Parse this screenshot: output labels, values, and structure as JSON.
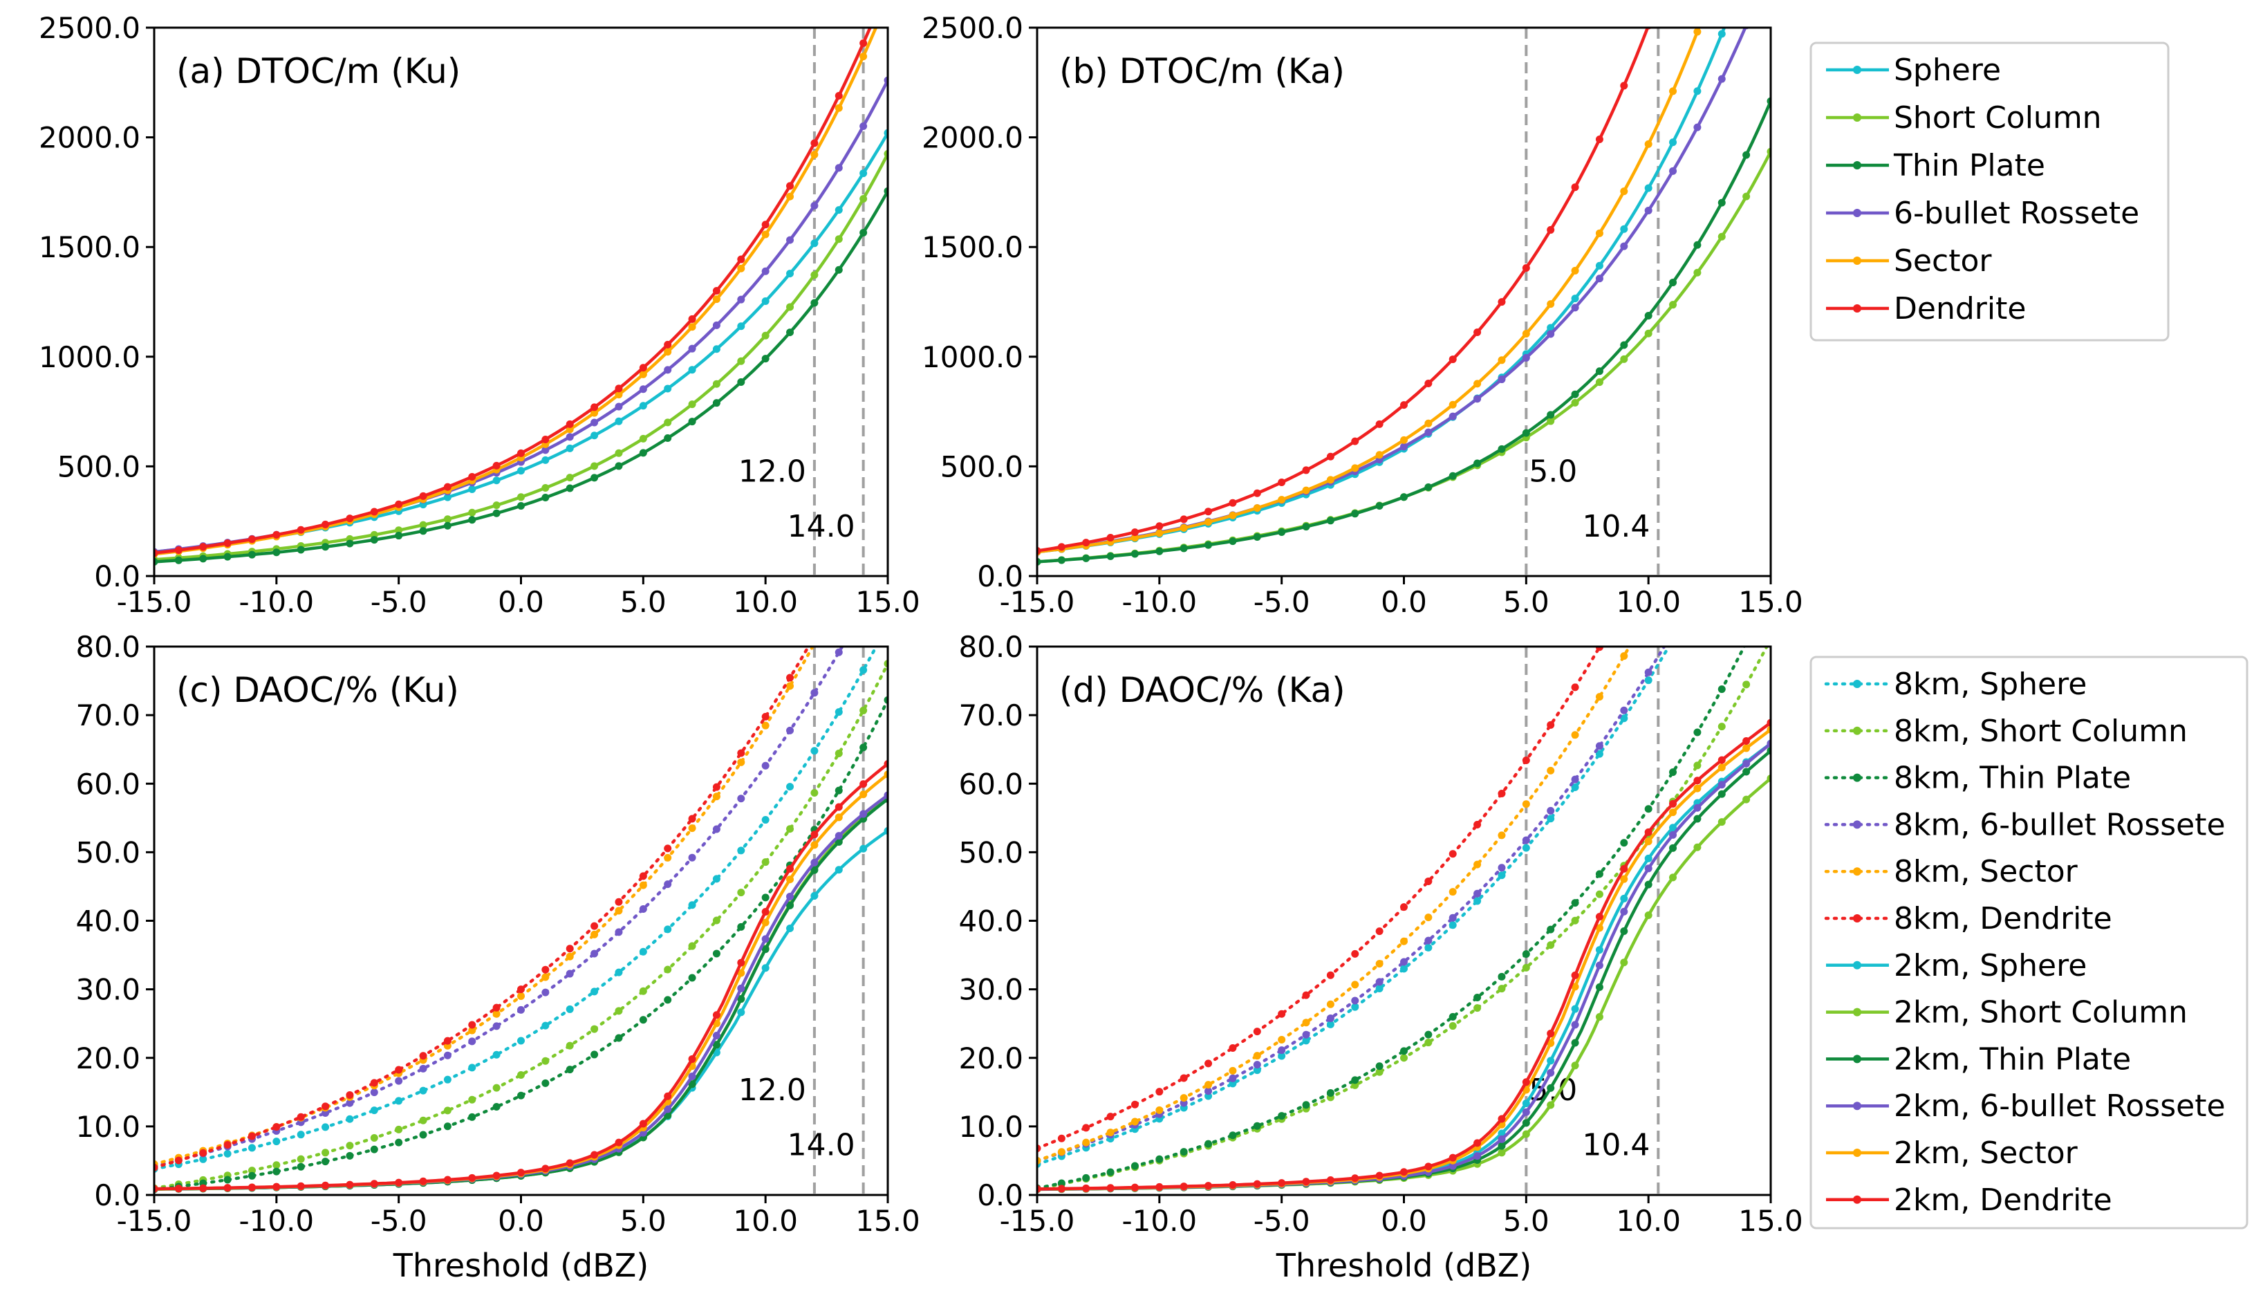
{
  "figure": {
    "x_label": "Threshold (dBZ)"
  },
  "chart_data": [
    {
      "type": "line",
      "title": "(a) DTOC/m (Ku)",
      "xlim": [
        -15,
        15
      ],
      "ylim": [
        0,
        2500
      ],
      "xticks": [
        "-15.0",
        "-10.0",
        "-5.0",
        "0.0",
        "5.0",
        "10.0",
        "15.0"
      ],
      "yticks": [
        "0.0",
        "500.0",
        "1000.0",
        "1500.0",
        "2000.0",
        "2500.0"
      ],
      "xtick_values": [
        -15,
        -10,
        -5,
        0,
        5,
        10,
        15
      ],
      "ytick_values": [
        0,
        500,
        1000,
        1500,
        2000,
        2500
      ],
      "vlines": [
        {
          "x": 12.0,
          "label": "12.0",
          "label_y": 430
        },
        {
          "x": 14.0,
          "label": "14.0",
          "label_y": 180
        }
      ],
      "curve_type": "exp",
      "series": [
        {
          "name": "Sphere",
          "color": "#17becf",
          "style": "solid",
          "anchors": [
            110,
            480,
            1650
          ]
        },
        {
          "name": "Short Column",
          "color": "#7ec82a",
          "style": "solid",
          "anchors": [
            75,
            360,
            1640
          ]
        },
        {
          "name": "Thin Plate",
          "color": "#0f8a3c",
          "style": "solid",
          "anchors": [
            65,
            320,
            1500
          ]
        },
        {
          "name": "6-bullet Rossete",
          "color": "#7158c8",
          "style": "solid",
          "anchors": [
            110,
            520,
            1850
          ]
        },
        {
          "name": "Sector",
          "color": "#ffaa00",
          "style": "solid",
          "anchors": [
            100,
            540,
            2190
          ]
        },
        {
          "name": "Dendrite",
          "color": "#f02020",
          "style": "solid",
          "anchors": [
            105,
            560,
            2240
          ]
        }
      ]
    },
    {
      "type": "line",
      "title": "(b) DTOC/m (Ka)",
      "xlim": [
        -15,
        15
      ],
      "ylim": [
        0,
        2500
      ],
      "xticks": [
        "-15.0",
        "-10.0",
        "-5.0",
        "0.0",
        "5.0",
        "10.0",
        "15.0"
      ],
      "yticks": [
        "0.0",
        "500.0",
        "1000.0",
        "1500.0",
        "2000.0",
        "2500.0"
      ],
      "xtick_values": [
        -15,
        -10,
        -5,
        0,
        5,
        10,
        15
      ],
      "ytick_values": [
        0,
        500,
        1000,
        1500,
        2000,
        2500
      ],
      "vlines": [
        {
          "x": 5.0,
          "label": "5.0",
          "label_y": 430
        },
        {
          "x": 10.4,
          "label": "10.4",
          "label_y": 180
        }
      ],
      "curve_type": "exp",
      "series": [
        {
          "name": "Sphere",
          "color": "#17becf",
          "style": "solid",
          "anchors": [
            110,
            580,
            2620
          ]
        },
        {
          "name": "Short Column",
          "color": "#7ec82a",
          "style": "solid",
          "anchors": [
            65,
            360,
            1640
          ]
        },
        {
          "name": "Thin Plate",
          "color": "#0f8a3c",
          "style": "solid",
          "anchors": [
            65,
            360,
            1870
          ]
        },
        {
          "name": "6-bullet Rossete",
          "color": "#7158c8",
          "style": "solid",
          "anchors": [
            110,
            590,
            2300
          ]
        },
        {
          "name": "Sector",
          "color": "#ffaa00",
          "style": "solid",
          "anchors": [
            110,
            620,
            3000
          ]
        },
        {
          "name": "Dendrite",
          "color": "#f02020",
          "style": "solid",
          "anchors": [
            115,
            780,
            3800
          ]
        }
      ]
    },
    {
      "type": "line",
      "title": "(c) DAOC/% (Ku)",
      "xlim": [
        -15,
        15
      ],
      "ylim": [
        0,
        80
      ],
      "xticks": [
        "-15.0",
        "-10.0",
        "-5.0",
        "0.0",
        "5.0",
        "10.0",
        "15.0"
      ],
      "yticks": [
        "0.0",
        "10.0",
        "20.0",
        "30.0",
        "40.0",
        "50.0",
        "60.0",
        "70.0",
        "80.0"
      ],
      "xtick_values": [
        -15,
        -10,
        -5,
        0,
        5,
        10,
        15
      ],
      "ytick_values": [
        0,
        10,
        20,
        30,
        40,
        50,
        60,
        70,
        80
      ],
      "vlines": [
        {
          "x": 12.0,
          "label": "12.0",
          "label_y": 13.8
        },
        {
          "x": 14.0,
          "label": "14.0",
          "label_y": 5.8
        }
      ],
      "series": [
        {
          "name": "8km, Sphere",
          "color": "#17becf",
          "style": "dotted",
          "curve": "exp",
          "anchors": [
            3.8,
            22.5,
            64.5
          ]
        },
        {
          "name": "8km, Short Column",
          "color": "#7ec82a",
          "style": "dotted",
          "curve": "exp",
          "anchors": [
            1.0,
            17.5,
            61.0
          ]
        },
        {
          "name": "8km, Thin Plate",
          "color": "#0f8a3c",
          "style": "dotted",
          "curve": "exp",
          "anchors": [
            0.8,
            14.5,
            58.5
          ]
        },
        {
          "name": "8km, 6-bullet Rossete",
          "color": "#7158c8",
          "style": "dotted",
          "curve": "exp",
          "anchors": [
            4.2,
            27.0,
            69.5
          ]
        },
        {
          "name": "8km, Sector",
          "color": "#ffaa00",
          "style": "dotted",
          "curve": "exp",
          "anchors": [
            4.5,
            29.0,
            77.5
          ]
        },
        {
          "name": "8km, Dendrite",
          "color": "#f02020",
          "style": "dotted",
          "curve": "exp",
          "anchors": [
            4.0,
            30.0,
            76.5
          ]
        },
        {
          "name": "2km, Sphere",
          "color": "#17becf",
          "style": "solid",
          "curve": "sig",
          "params": {
            "c": 2.0,
            "s": 8.7,
            "k": 1.7,
            "i": 42,
            "t": 12.0
          }
        },
        {
          "name": "2km, Short Column",
          "color": "#7ec82a",
          "style": "solid",
          "curve": "sig",
          "params": {
            "c": 2.0,
            "s": 8.6,
            "k": 1.6,
            "i": 44,
            "t": 15.0
          }
        },
        {
          "name": "2km, Thin Plate",
          "color": "#0f8a3c",
          "style": "solid",
          "curve": "sig",
          "params": {
            "c": 2.0,
            "s": 8.6,
            "k": 1.6,
            "i": 44,
            "t": 14.5
          }
        },
        {
          "name": "2km, 6-bullet Rossete",
          "color": "#7158c8",
          "style": "solid",
          "curve": "sig",
          "params": {
            "c": 2.2,
            "s": 8.5,
            "k": 1.6,
            "i": 45,
            "t": 14.0
          }
        },
        {
          "name": "2km, Sector",
          "color": "#ffaa00",
          "style": "solid",
          "curve": "sig",
          "params": {
            "c": 2.3,
            "s": 8.3,
            "k": 1.6,
            "i": 46,
            "t": 16.0
          }
        },
        {
          "name": "2km, Dendrite",
          "color": "#f02020",
          "style": "solid",
          "curve": "sig",
          "params": {
            "c": 2.4,
            "s": 8.2,
            "k": 1.6,
            "i": 47,
            "t": 16.5
          }
        }
      ]
    },
    {
      "type": "line",
      "title": "(d) DAOC/% (Ka)",
      "xlim": [
        -15,
        15
      ],
      "ylim": [
        0,
        80
      ],
      "xticks": [
        "-15.0",
        "-10.0",
        "-5.0",
        "0.0",
        "5.0",
        "10.0",
        "15.0"
      ],
      "yticks": [
        "0.0",
        "10.0",
        "20.0",
        "30.0",
        "40.0",
        "50.0",
        "60.0",
        "70.0",
        "80.0"
      ],
      "xtick_values": [
        -15,
        -10,
        -5,
        0,
        5,
        10,
        15
      ],
      "ytick_values": [
        0,
        10,
        20,
        30,
        40,
        50,
        60,
        70,
        80
      ],
      "vlines": [
        {
          "x": 5.0,
          "label": "5.0",
          "label_y": 13.8
        },
        {
          "x": 10.4,
          "label": "10.4",
          "label_y": 5.8
        }
      ],
      "series": [
        {
          "name": "8km, Sphere",
          "color": "#17becf",
          "style": "dotted",
          "curve": "exp",
          "anchors": [
            4.5,
            33.0,
            80.5
          ]
        },
        {
          "name": "8km, Short Column",
          "color": "#7ec82a",
          "style": "dotted",
          "curve": "exp",
          "anchors": [
            0.9,
            20.0,
            62.0
          ]
        },
        {
          "name": "8km, Thin Plate",
          "color": "#0f8a3c",
          "style": "dotted",
          "curve": "exp",
          "anchors": [
            1.0,
            21.0,
            68.0
          ]
        },
        {
          "name": "8km, 6-bullet Rossete",
          "color": "#7158c8",
          "style": "dotted",
          "curve": "exp",
          "anchors": [
            5.0,
            34.0,
            81.0
          ]
        },
        {
          "name": "8km, Sector",
          "color": "#ffaa00",
          "style": "dotted",
          "curve": "exp",
          "anchors": [
            5.0,
            37.0,
            92.0
          ]
        },
        {
          "name": "8km, Dendrite",
          "color": "#f02020",
          "style": "dotted",
          "curve": "exp",
          "anchors": [
            6.8,
            42.0,
            98.0
          ]
        },
        {
          "name": "2km, Sphere",
          "color": "#17becf",
          "style": "solid",
          "curve": "sig",
          "params": {
            "c": 2.0,
            "s": 6.8,
            "k": 1.4,
            "i": 45,
            "t": 21.0
          }
        },
        {
          "name": "2km, Short Column",
          "color": "#7ec82a",
          "style": "solid",
          "curve": "sig",
          "params": {
            "c": 1.7,
            "s": 7.6,
            "k": 1.4,
            "i": 40,
            "t": 21.0
          }
        },
        {
          "name": "2km, Thin Plate",
          "color": "#0f8a3c",
          "style": "solid",
          "curve": "sig",
          "params": {
            "c": 1.8,
            "s": 7.3,
            "k": 1.4,
            "i": 43,
            "t": 22.0
          }
        },
        {
          "name": "2km, 6-bullet Rossete",
          "color": "#7158c8",
          "style": "solid",
          "curve": "sig",
          "params": {
            "c": 1.9,
            "s": 7.0,
            "k": 1.4,
            "i": 44,
            "t": 22.0
          }
        },
        {
          "name": "2km, Sector",
          "color": "#ffaa00",
          "style": "solid",
          "curve": "sig",
          "params": {
            "c": 2.1,
            "s": 6.5,
            "k": 1.4,
            "i": 46,
            "t": 22.0
          }
        },
        {
          "name": "2km, Dendrite",
          "color": "#f02020",
          "style": "solid",
          "curve": "sig",
          "params": {
            "c": 2.3,
            "s": 6.4,
            "k": 1.4,
            "i": 47,
            "t": 22.0
          }
        }
      ]
    }
  ],
  "legends": {
    "top": [
      {
        "label": "Sphere",
        "color": "#17becf",
        "style": "solid"
      },
      {
        "label": "Short Column",
        "color": "#7ec82a",
        "style": "solid"
      },
      {
        "label": "Thin Plate",
        "color": "#0f8a3c",
        "style": "solid"
      },
      {
        "label": "6-bullet Rossete",
        "color": "#7158c8",
        "style": "solid"
      },
      {
        "label": "Sector",
        "color": "#ffaa00",
        "style": "solid"
      },
      {
        "label": "Dendrite",
        "color": "#f02020",
        "style": "solid"
      }
    ],
    "bottom": [
      {
        "label": "8km, Sphere",
        "color": "#17becf",
        "style": "dotted"
      },
      {
        "label": "8km, Short Column",
        "color": "#7ec82a",
        "style": "dotted"
      },
      {
        "label": "8km, Thin Plate",
        "color": "#0f8a3c",
        "style": "dotted"
      },
      {
        "label": "8km, 6-bullet Rossete",
        "color": "#7158c8",
        "style": "dotted"
      },
      {
        "label": "8km, Sector",
        "color": "#ffaa00",
        "style": "dotted"
      },
      {
        "label": "8km, Dendrite",
        "color": "#f02020",
        "style": "dotted"
      },
      {
        "label": "2km, Sphere",
        "color": "#17becf",
        "style": "solid"
      },
      {
        "label": "2km, Short Column",
        "color": "#7ec82a",
        "style": "solid"
      },
      {
        "label": "2km, Thin Plate",
        "color": "#0f8a3c",
        "style": "solid"
      },
      {
        "label": "2km, 6-bullet Rossete",
        "color": "#7158c8",
        "style": "solid"
      },
      {
        "label": "2km, Sector",
        "color": "#ffaa00",
        "style": "solid"
      },
      {
        "label": "2km, Dendrite",
        "color": "#f02020",
        "style": "solid"
      }
    ]
  }
}
